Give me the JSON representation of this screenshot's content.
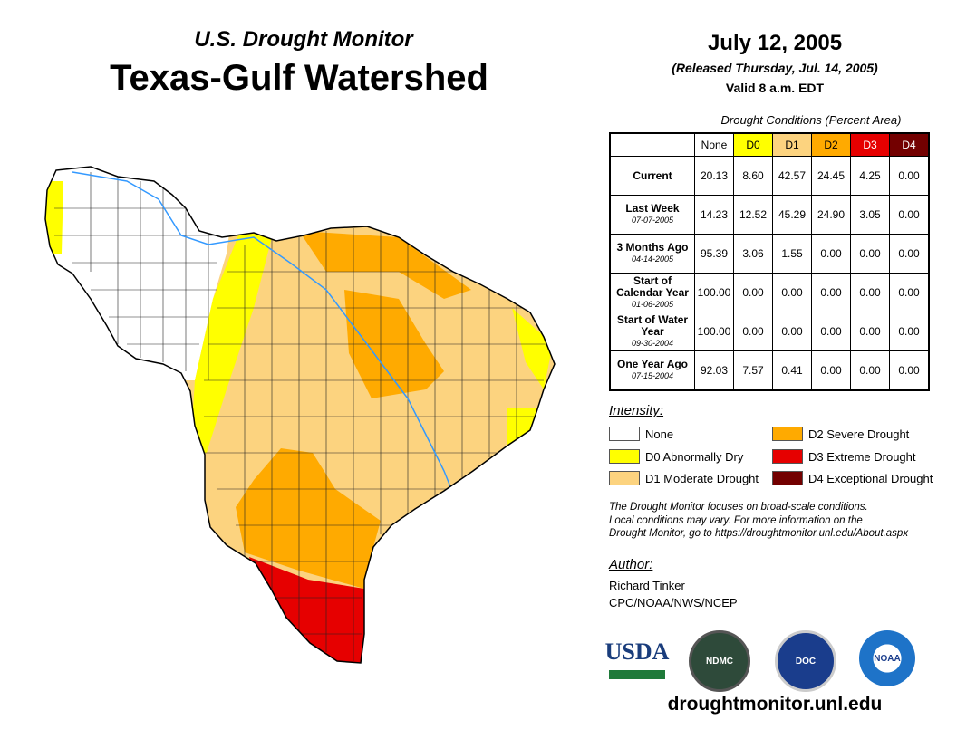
{
  "header": {
    "subtitle": "U.S. Drought Monitor",
    "title": "Texas-Gulf Watershed",
    "date": "July 12, 2005",
    "released": "(Released Thursday, Jul. 14, 2005)",
    "valid": "Valid 8 a.m. EDT"
  },
  "table": {
    "caption": "Drought Conditions (Percent Area)",
    "columns": [
      {
        "label": "None",
        "color": "#ffffff",
        "text": "#000"
      },
      {
        "label": "D0",
        "color": "#ffff00",
        "text": "#000"
      },
      {
        "label": "D1",
        "color": "#fcd37f",
        "text": "#000"
      },
      {
        "label": "D2",
        "color": "#ffaa00",
        "text": "#000"
      },
      {
        "label": "D3",
        "color": "#e60000",
        "text": "#fff"
      },
      {
        "label": "D4",
        "color": "#730000",
        "text": "#fff"
      }
    ],
    "rows": [
      {
        "label": "Current",
        "date": "",
        "values": [
          "20.13",
          "8.60",
          "42.57",
          "24.45",
          "4.25",
          "0.00"
        ]
      },
      {
        "label": "Last Week",
        "date": "07-07-2005",
        "values": [
          "14.23",
          "12.52",
          "45.29",
          "24.90",
          "3.05",
          "0.00"
        ]
      },
      {
        "label": "3 Months Ago",
        "date": "04-14-2005",
        "values": [
          "95.39",
          "3.06",
          "1.55",
          "0.00",
          "0.00",
          "0.00"
        ]
      },
      {
        "label": "Start of Calendar Year",
        "date": "01-06-2005",
        "values": [
          "100.00",
          "0.00",
          "0.00",
          "0.00",
          "0.00",
          "0.00"
        ]
      },
      {
        "label": "Start of Water Year",
        "date": "09-30-2004",
        "values": [
          "100.00",
          "0.00",
          "0.00",
          "0.00",
          "0.00",
          "0.00"
        ]
      },
      {
        "label": "One Year Ago",
        "date": "07-15-2004",
        "values": [
          "92.03",
          "7.57",
          "0.41",
          "0.00",
          "0.00",
          "0.00"
        ]
      }
    ]
  },
  "legend": {
    "title": "Intensity:",
    "items": [
      {
        "label": "None",
        "color": "#ffffff"
      },
      {
        "label": "D0 Abnormally Dry",
        "color": "#ffff00"
      },
      {
        "label": "D1 Moderate Drought",
        "color": "#fcd37f"
      },
      {
        "label": "D2 Severe Drought",
        "color": "#ffaa00"
      },
      {
        "label": "D3 Extreme Drought",
        "color": "#e60000"
      },
      {
        "label": "D4 Exceptional Drought",
        "color": "#730000"
      }
    ]
  },
  "note": [
    "The Drought Monitor focuses on broad-scale conditions.",
    "Local conditions may vary. For more information on the",
    "Drought Monitor, go to https://droughtmonitor.unl.edu/About.aspx"
  ],
  "author": {
    "title": "Author:",
    "name": "Richard Tinker",
    "org": "CPC/NOAA/NWS/NCEP"
  },
  "logos": [
    "USDA",
    "NDMC",
    "DOC",
    "NOAA"
  ],
  "url": "droughtmonitor.unl.edu"
}
